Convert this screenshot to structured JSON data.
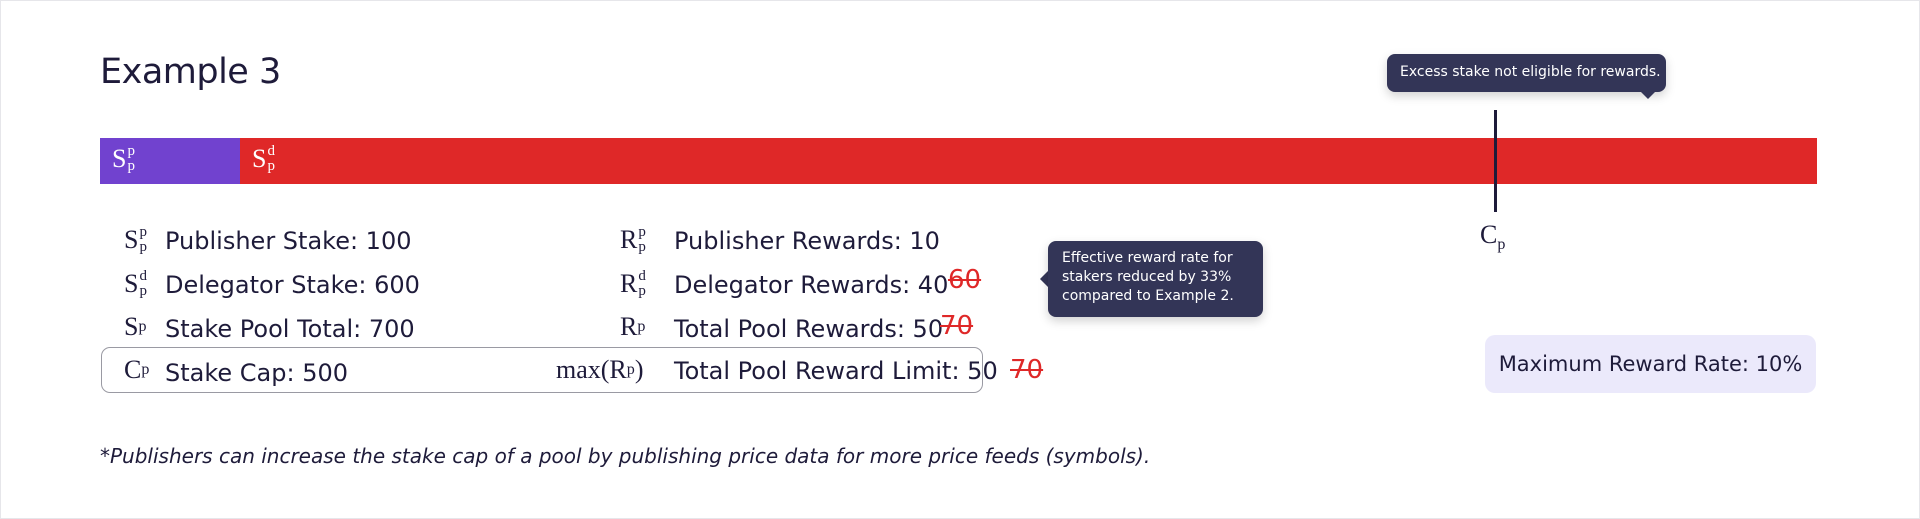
{
  "title": "Example 3",
  "bar": {
    "publisher_label": {
      "base": "S",
      "sup": "p",
      "sub": "p"
    },
    "delegator_label": {
      "base": "S",
      "sup": "d",
      "sub": "p"
    },
    "publisher_share": 100,
    "delegator_share": 600,
    "colors": {
      "publisher": "#7142cf",
      "delegator": "#df2828"
    }
  },
  "cap_marker": {
    "base": "C",
    "sub": "p"
  },
  "tooltips": {
    "excess": "Excess stake not eligible for rewards.",
    "effective": "Effective reward rate for stakers reduced by 33% compared to Example 2."
  },
  "stakes": [
    {
      "sym": {
        "base": "S",
        "sup": "p",
        "sub": "p"
      },
      "text": "Publisher Stake: 100"
    },
    {
      "sym": {
        "base": "S",
        "sup": "d",
        "sub": "p"
      },
      "text": "Delegator Stake: 600"
    },
    {
      "sym": {
        "base": "S",
        "sub": "p"
      },
      "text": "Stake Pool Total: 700"
    },
    {
      "sym": {
        "base": "C",
        "sub": "p"
      },
      "text": "Stake Cap: 500"
    }
  ],
  "rewards": [
    {
      "sym": {
        "base": "R",
        "sup": "p",
        "sub": "p"
      },
      "text": "Publisher Rewards: 10"
    },
    {
      "sym": {
        "base": "R",
        "sup": "d",
        "sub": "p"
      },
      "text": "Delegator Rewards: 40",
      "strike": "60"
    },
    {
      "sym": {
        "base": "R",
        "sub": "p"
      },
      "text": "Total Pool Rewards: 50",
      "strike": "70"
    },
    {
      "sym": {
        "prefix": "max(",
        "base": "R",
        "sub": "p",
        "suffix": ")"
      },
      "text": "Total Pool Reward Limit: 50",
      "strike": "70"
    }
  ],
  "max_rate": "Maximum Reward Rate: 10%",
  "footnote": "*Publishers can increase the stake cap of a pool by publishing price data for more price feeds (symbols)."
}
